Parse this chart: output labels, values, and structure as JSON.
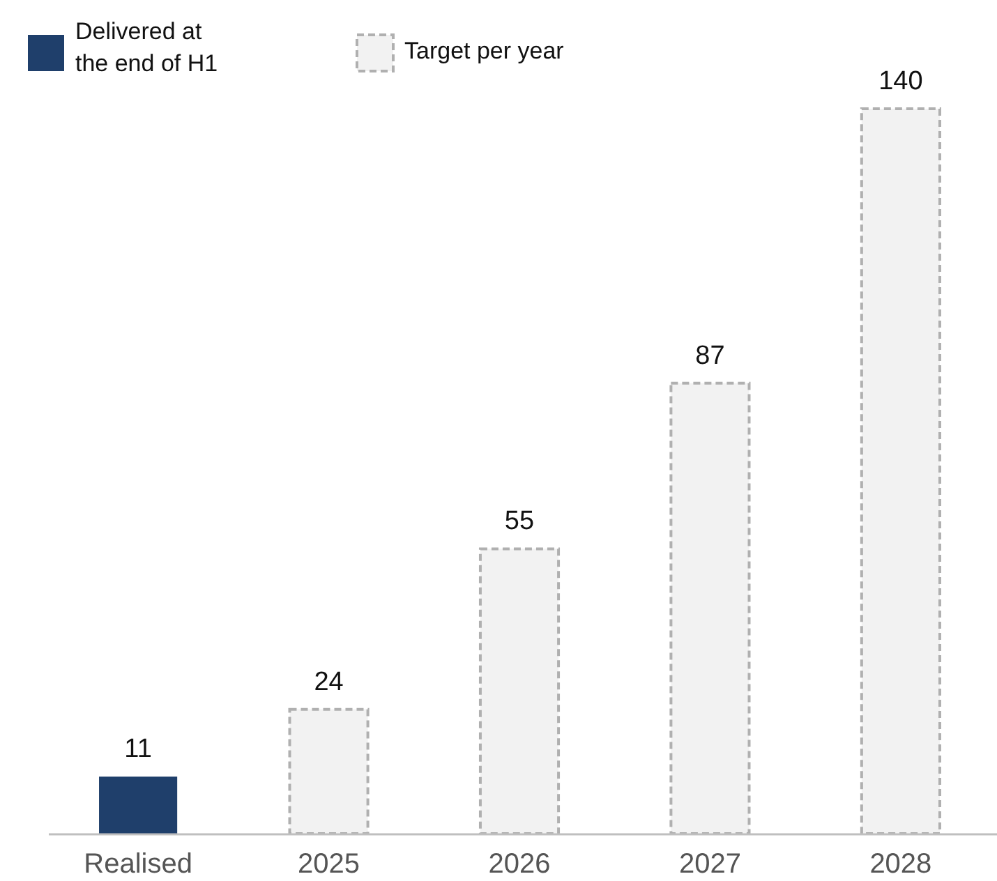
{
  "chart_data": {
    "type": "bar",
    "categories": [
      "Realised",
      "2025",
      "2026",
      "2027",
      "2028"
    ],
    "stacked": true,
    "data_labels": true,
    "legend": "top left",
    "series": [
      {
        "name": "Delivered at the end of H1",
        "color": "#1f3f6b",
        "values": [
          11,
          null,
          null,
          null,
          null
        ]
      },
      {
        "name": "Target per year",
        "color": "#f2f2f2",
        "line_style": "dashed",
        "values": [
          null,
          24,
          55,
          87,
          140
        ]
      }
    ]
  }
}
